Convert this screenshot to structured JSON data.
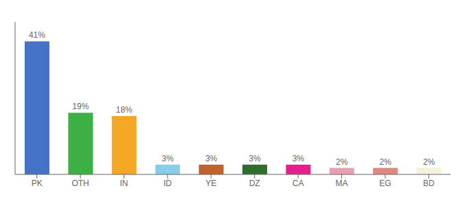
{
  "chart_data": {
    "type": "bar",
    "categories": [
      "PK",
      "OTH",
      "IN",
      "ID",
      "YE",
      "DZ",
      "CA",
      "MA",
      "EG",
      "BD"
    ],
    "values": [
      41,
      19,
      18,
      3,
      3,
      3,
      3,
      2,
      2,
      2
    ],
    "value_labels": [
      "41%",
      "19%",
      "18%",
      "3%",
      "3%",
      "3%",
      "3%",
      "2%",
      "2%",
      "2%"
    ],
    "colors": [
      "#4472c4",
      "#3cb043",
      "#f5a623",
      "#87ceeb",
      "#c0622b",
      "#2d6e2d",
      "#e91e8c",
      "#e8a0b0",
      "#e08880",
      "#f5f0dc"
    ],
    "ylim": [
      0,
      47
    ],
    "data_labels": true,
    "tick_labels": "x",
    "grid": false
  }
}
